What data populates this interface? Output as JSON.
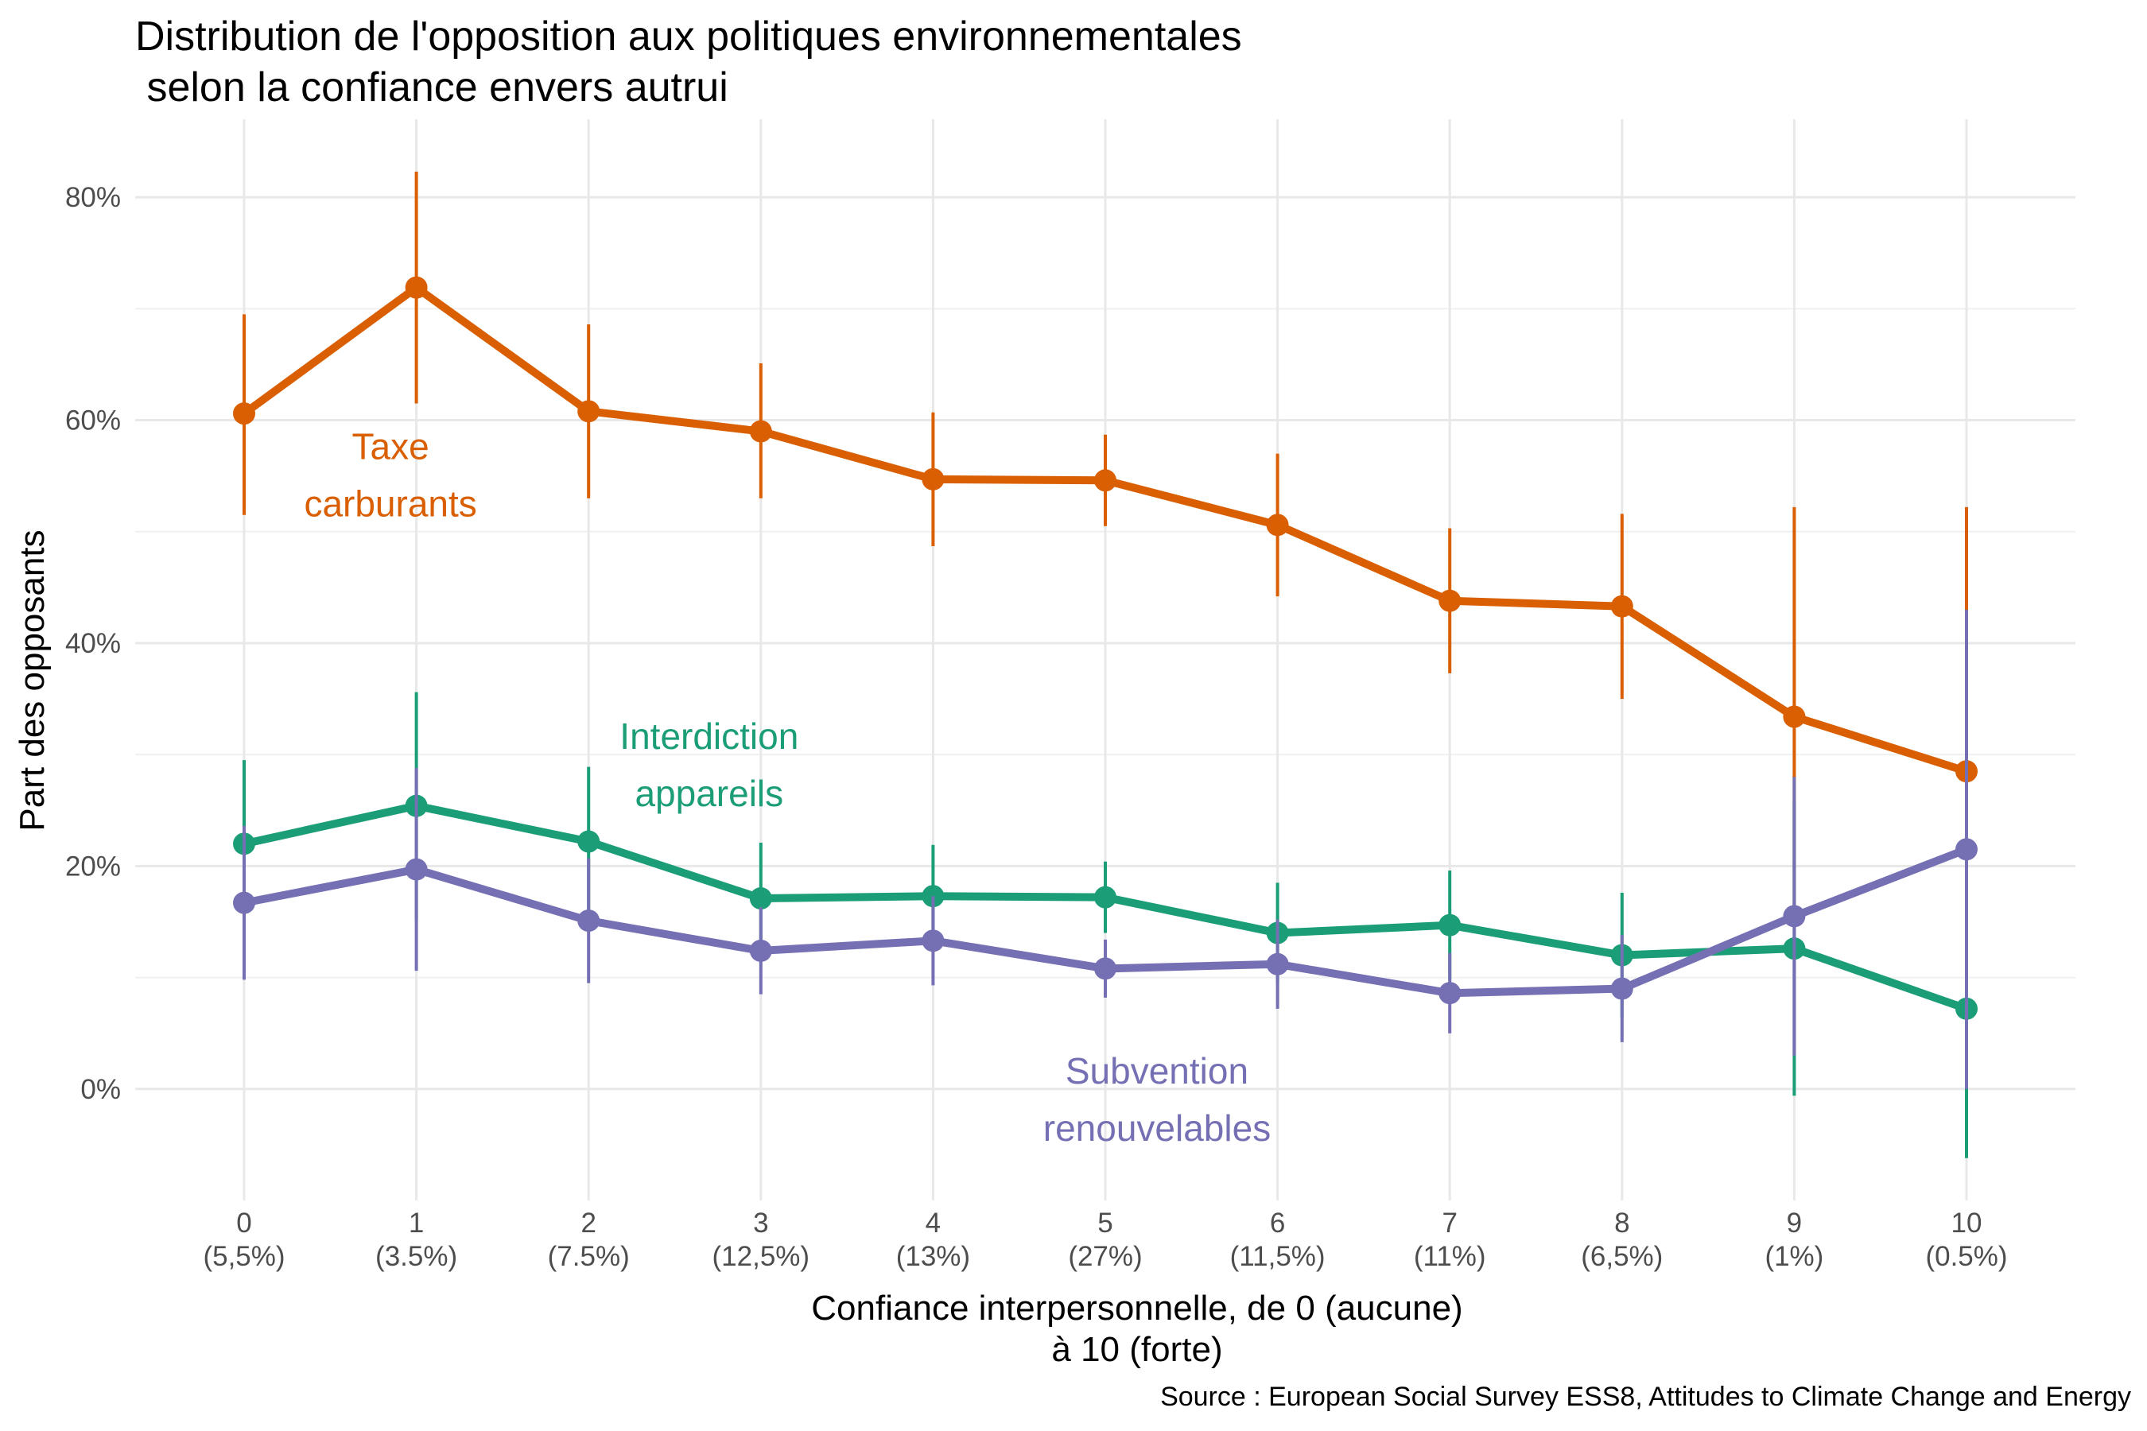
{
  "chart_data": {
    "type": "line",
    "title": "Distribution de l'opposition aux politiques environnementales\n selon la confiance envers autrui",
    "xlabel_lines": [
      "Confiance interpersonnelle, de 0 (aucune)",
      "à 10 (forte)"
    ],
    "ylabel": "Part des opposants",
    "caption": "Source : European Social Survey ESS8, Attitudes to Climate Change and Energy",
    "x": [
      0,
      1,
      2,
      3,
      4,
      5,
      6,
      7,
      8,
      9,
      10
    ],
    "x_sublabels": [
      "(5,5%)",
      "(3.5%)",
      "(7.5%)",
      "(12,5%)",
      "(13%)",
      "(27%)",
      "(11,5%)",
      "(11%)",
      "(6,5%)",
      "(1%)",
      "(0.5%)"
    ],
    "ylim": [
      -0.1,
      0.87
    ],
    "yticks": [
      0,
      0.2,
      0.4,
      0.6,
      0.8
    ],
    "ytick_labels": [
      "0%",
      "20%",
      "40%",
      "60%",
      "80%"
    ],
    "grid": true,
    "legend": "direct labels",
    "series": [
      {
        "name_lines": [
          "Taxe",
          "carburants"
        ],
        "color": "#d95f02",
        "values": [
          0.606,
          0.719,
          0.608,
          0.59,
          0.547,
          0.546,
          0.506,
          0.438,
          0.433,
          0.334,
          0.285
        ],
        "lower": [
          0.515,
          0.615,
          0.53,
          0.53,
          0.487,
          0.505,
          0.442,
          0.373,
          0.35,
          0.15,
          0.04
        ],
        "upper": [
          0.695,
          0.823,
          0.686,
          0.651,
          0.607,
          0.587,
          0.57,
          0.503,
          0.516,
          0.522,
          0.522
        ]
      },
      {
        "name_lines": [
          "Interdiction",
          "appareils"
        ],
        "color": "#1b9e77",
        "values": [
          0.22,
          0.254,
          0.222,
          0.171,
          0.173,
          0.172,
          0.14,
          0.147,
          0.12,
          0.126,
          0.072
        ],
        "lower": [
          0.145,
          0.152,
          0.155,
          0.121,
          0.127,
          0.14,
          0.095,
          0.098,
          0.064,
          -0.006,
          -0.062
        ],
        "upper": [
          0.295,
          0.356,
          0.289,
          0.221,
          0.219,
          0.204,
          0.185,
          0.196,
          0.176,
          0.258,
          0.206
        ]
      },
      {
        "name_lines": [
          "Subvention",
          "renouvelables"
        ],
        "color": "#7570b3",
        "values": [
          0.167,
          0.197,
          0.151,
          0.124,
          0.133,
          0.108,
          0.112,
          0.086,
          0.09,
          0.155,
          0.215
        ],
        "lower": [
          0.098,
          0.106,
          0.095,
          0.085,
          0.093,
          0.082,
          0.072,
          0.05,
          0.042,
          0.03,
          0.0
        ],
        "upper": [
          0.236,
          0.288,
          0.207,
          0.163,
          0.173,
          0.134,
          0.152,
          0.122,
          0.138,
          0.28,
          0.43
        ]
      }
    ]
  }
}
